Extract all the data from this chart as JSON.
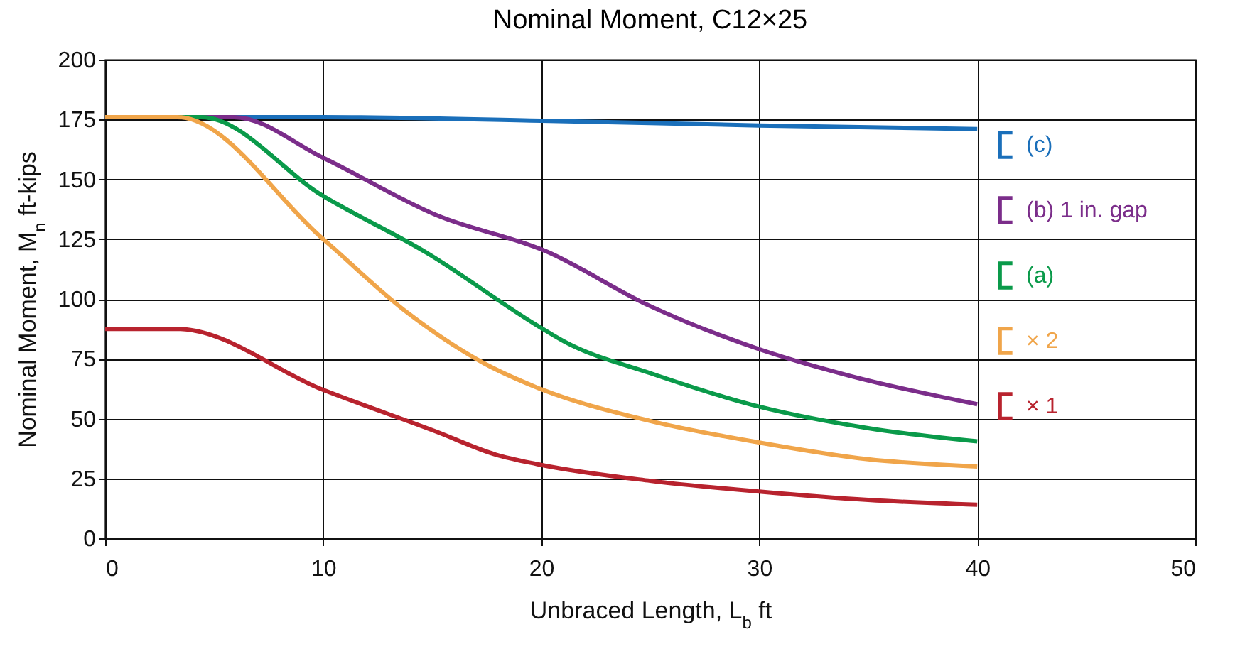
{
  "chart_data": {
    "type": "line",
    "title": "Nominal Moment, C12×25",
    "xlabel": "Unbraced Length, L$_{b}$ ft",
    "ylabel": "Nominal Moment, M$_{n}$ ft-kips",
    "xlim": [
      0,
      50
    ],
    "xticks": [
      0,
      10,
      20,
      30,
      40,
      50
    ],
    "ylim": [
      0,
      200
    ],
    "yticks": [
      0,
      25,
      50,
      75,
      100,
      125,
      150,
      175,
      200
    ],
    "grid": true,
    "legend": "right",
    "line_style": "solid",
    "series": [
      {
        "name": "(c)",
        "color": "#1a6fba",
        "x": [
          0,
          10,
          20,
          30,
          40
        ],
        "values": [
          176,
          176,
          174.5,
          172.5,
          171
        ]
      },
      {
        "name": "(b) 1 in. gap",
        "color": "#7b2d8a",
        "x": [
          0,
          5.9,
          10,
          15.2,
          20.2,
          25,
          30,
          34.1,
          40
        ],
        "values": [
          176,
          176,
          159,
          135,
          120,
          97,
          79,
          68,
          56
        ]
      },
      {
        "name": "(a)",
        "color": "#0a9a4a",
        "x": [
          0,
          4.4,
          10,
          14.8,
          19.8,
          21.1,
          25,
          30,
          35,
          40
        ],
        "values": [
          176,
          176,
          143,
          119,
          89,
          82,
          69,
          55,
          46,
          40.5
        ]
      },
      {
        "name": "× 2",
        "color": "#f0a54a",
        "x": [
          0,
          3.3,
          10,
          13.9,
          17.4,
          19.8,
          25,
          30,
          35,
          40
        ],
        "values": [
          176,
          176,
          125,
          94,
          73,
          63,
          49,
          40,
          33,
          30
        ]
      },
      {
        "name": "× 1",
        "color": "#b8232e",
        "x": [
          0,
          3.3,
          10,
          15.2,
          17.9,
          19.8,
          25,
          30,
          35,
          40
        ],
        "values": [
          87.5,
          87.5,
          62,
          44.5,
          35,
          31,
          24,
          19.5,
          16,
          14
        ]
      }
    ]
  }
}
